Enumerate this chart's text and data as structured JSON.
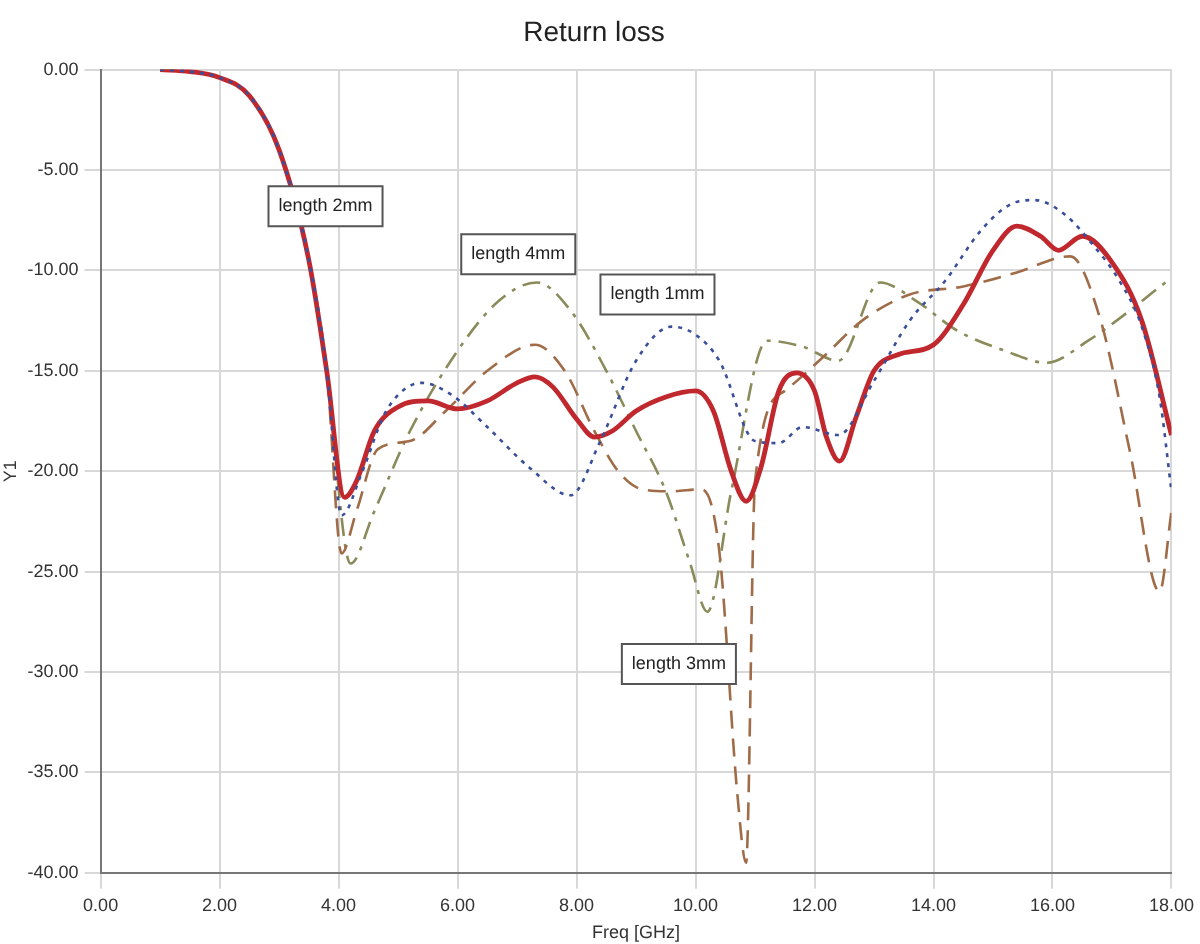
{
  "chart_data": {
    "type": "line",
    "title": "Return loss",
    "xlabel": "Freq [GHz]",
    "ylabel": "Y1",
    "xlim": [
      0,
      18
    ],
    "ylim": [
      -40,
      0
    ],
    "xticks": [
      {
        "value": 0,
        "label": "0.00"
      },
      {
        "value": 2,
        "label": "2.00"
      },
      {
        "value": 4,
        "label": "4.00"
      },
      {
        "value": 6,
        "label": "6.00"
      },
      {
        "value": 8,
        "label": "8.00"
      },
      {
        "value": 10,
        "label": "10.00"
      },
      {
        "value": 12,
        "label": "12.00"
      },
      {
        "value": 14,
        "label": "14.00"
      },
      {
        "value": 16,
        "label": "16.00"
      },
      {
        "value": 18,
        "label": "18.00"
      }
    ],
    "yticks": [
      {
        "value": 0,
        "label": "0.00"
      },
      {
        "value": -5,
        "label": "-5.00"
      },
      {
        "value": -10,
        "label": "-10.00"
      },
      {
        "value": -15,
        "label": "-15.00"
      },
      {
        "value": -20,
        "label": "-20.00"
      },
      {
        "value": -25,
        "label": "-25.00"
      },
      {
        "value": -30,
        "label": "-30.00"
      },
      {
        "value": -35,
        "label": "-35.00"
      },
      {
        "value": -40,
        "label": "-40.00"
      }
    ],
    "grid": true,
    "legend": false,
    "marker": "none",
    "series": [
      {
        "color": "#3a4f9a",
        "line_style": "dotted",
        "x": [
          1,
          1.5,
          2,
          2.5,
          3,
          3.5,
          3.8,
          4.05,
          4.4,
          4.8,
          5.4,
          5.9,
          6.5,
          7.2,
          7.9,
          8.4,
          9,
          9.6,
          10,
          10.4,
          11,
          11.4,
          11.8,
          12.4,
          13,
          13.6,
          14.2,
          14.8,
          15.3,
          15.7,
          16.2,
          16.7,
          17.1,
          17.5,
          17.8,
          18
        ],
        "values": [
          0,
          -0.1,
          -0.4,
          -1.3,
          -4,
          -9.5,
          -15,
          -22.2,
          -20,
          -17,
          -15.6,
          -16.2,
          -17.8,
          -19.8,
          -21.2,
          -18.5,
          -14.5,
          -12.8,
          -13.2,
          -14.5,
          -18.5,
          -18.6,
          -17.8,
          -18.2,
          -15.5,
          -12.5,
          -10.5,
          -8,
          -6.7,
          -6.5,
          -7.2,
          -8.8,
          -10.4,
          -12.8,
          -16.3,
          -21
        ]
      },
      {
        "color": "#c0282e",
        "line_style": "solid",
        "x": [
          1,
          1.5,
          2,
          2.5,
          3,
          3.5,
          3.8,
          4.1,
          4.3,
          4.6,
          5,
          5.5,
          6,
          6.5,
          7,
          7.3,
          7.6,
          8,
          8.3,
          8.6,
          9,
          9.5,
          10,
          10.3,
          10.6,
          10.85,
          11.1,
          11.4,
          11.7,
          12,
          12.2,
          12.42,
          12.7,
          13,
          13.4,
          14,
          14.5,
          15,
          15.4,
          15.8,
          16.1,
          16.5,
          17,
          17.5,
          18
        ],
        "values": [
          0,
          -0.1,
          -0.4,
          -1.3,
          -4,
          -9.5,
          -15,
          -21.3,
          -20.5,
          -18,
          -16.8,
          -16.5,
          -16.9,
          -16.5,
          -15.6,
          -15.3,
          -15.8,
          -17.4,
          -18.3,
          -18,
          -17,
          -16.3,
          -16,
          -17,
          -20,
          -21.5,
          -19.8,
          -16,
          -15.1,
          -16,
          -18.3,
          -19.5,
          -17.3,
          -15,
          -14.2,
          -13.7,
          -11.7,
          -9,
          -7.8,
          -8.3,
          -9,
          -8.3,
          -9.6,
          -12.5,
          -18.2
        ]
      },
      {
        "color": "#a06c48",
        "line_style": "dashed",
        "x": [
          1,
          1.5,
          2,
          2.5,
          3,
          3.5,
          3.8,
          4.05,
          4.3,
          4.66,
          5.2,
          5.8,
          6.5,
          7.3,
          7.8,
          8.3,
          8.7,
          9.1,
          9.6,
          10.1,
          10.4,
          10.7,
          10.85,
          11,
          11.5,
          12.15,
          12.8,
          13.6,
          14.5,
          15.4,
          16.3,
          16.8,
          17.3,
          17.8,
          18
        ],
        "values": [
          0,
          -0.1,
          -0.4,
          -1.3,
          -4,
          -9.5,
          -15,
          -24.1,
          -22,
          -18.9,
          -18.5,
          -17,
          -15,
          -13.7,
          -15,
          -18,
          -20,
          -20.9,
          -21,
          -20.9,
          -24,
          -36,
          -39.5,
          -20.5,
          -16,
          -14.3,
          -12.5,
          -11.2,
          -10.8,
          -10.1,
          -9.3,
          -12.4,
          -19,
          -26,
          -22
        ]
      },
      {
        "color": "#8a8a5a",
        "line_style": "dashdot",
        "x": [
          1,
          1.5,
          2,
          2.5,
          3,
          3.5,
          3.8,
          4.2,
          4.6,
          5.2,
          6,
          6.7,
          7.33,
          7.9,
          8.5,
          9,
          9.5,
          9.9,
          10.2,
          10.6,
          11.2,
          11.8,
          12.4,
          13.1,
          13.7,
          14.4,
          15.2,
          15.9,
          16.6,
          17.3,
          17.9,
          18
        ],
        "values": [
          0,
          -0.1,
          -0.4,
          -1.3,
          -4,
          -9.5,
          -15,
          -24.6,
          -22,
          -18,
          -14,
          -11.5,
          -10.6,
          -12,
          -15,
          -18,
          -21,
          -24.5,
          -27,
          -21,
          -13.5,
          -13.8,
          -14.5,
          -10.6,
          -11.5,
          -13,
          -14,
          -14.6,
          -13.5,
          -12,
          -10.6,
          -10.4
        ]
      }
    ],
    "annotations": [
      "length 2mm",
      "length 4mm",
      "length 1mm",
      "length 3mm"
    ]
  }
}
